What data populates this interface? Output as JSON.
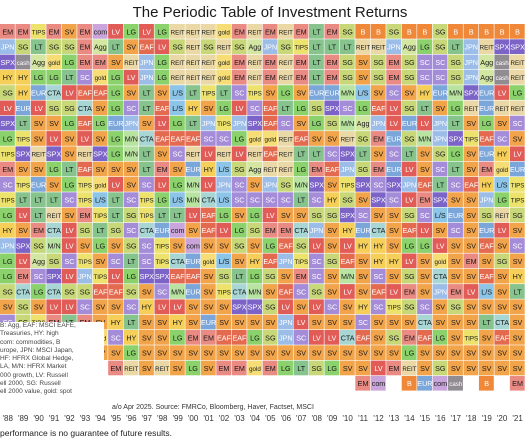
{
  "chart_data": {
    "type": "table",
    "title": "The Periodic Table of Investment Returns",
    "years": [
      "'88",
      "'89",
      "'90",
      "'91",
      "'92",
      "'93",
      "'94",
      "'95",
      "'96",
      "'97",
      "'98",
      "'99",
      "'00",
      "'01",
      "'02",
      "'03",
      "'04",
      "'05",
      "'06",
      "'07",
      "'08",
      "'09",
      "'10",
      "'11",
      "'12",
      "'13",
      "'14",
      "'15",
      "'16",
      "'17",
      "'18",
      "'19",
      "'20",
      "'21"
    ],
    "rows": [
      [
        "EM",
        "EM",
        "TIPS",
        "EM",
        "SV",
        "EM",
        "com",
        "LV",
        "LG",
        "LV",
        "LG",
        "REIT",
        "REIT",
        "REIT",
        "gold",
        "EM",
        "REIT",
        "EM",
        "REIT",
        "EM",
        "LT",
        "EM",
        "SG",
        "B",
        "B",
        "SG",
        "B",
        "B",
        "SG",
        "B",
        "B",
        "B",
        "B",
        "B"
      ],
      [
        "JPN",
        "SG",
        "LT",
        "SG",
        "SG",
        "EM",
        "Agg",
        "LT",
        "SV",
        "EAF",
        "LV",
        "SG",
        "REIT",
        "SG",
        "REIT",
        "SG",
        "Agg",
        "JPN",
        "SG",
        "TIPS",
        "LT",
        "LT",
        "LT",
        "REIT",
        "REIT",
        "JPN",
        "Agg",
        "LG",
        "SG",
        "LT",
        "JPN",
        "REIT",
        "SPX",
        "SPX"
      ],
      [
        "SPX",
        "cash",
        "Agg",
        "gold",
        "LG",
        "EM",
        "EM",
        "SV",
        "REIT",
        "JPN",
        "LG",
        "REIT",
        "REIT",
        "REIT",
        "gold",
        "EM",
        "REIT",
        "EM",
        "REIT",
        "EM",
        "LT",
        "EM",
        "SG",
        "SV",
        "SG",
        "EM",
        "SG",
        "SC",
        "SC",
        "SG",
        "JPN",
        "Agg",
        "cash",
        "REIT"
      ],
      [
        "HY",
        "HY",
        "LG",
        "LG",
        "LT",
        "SC",
        "gold",
        "LG",
        "LV",
        "JPN",
        "LG",
        "REIT",
        "REIT",
        "REIT",
        "gold",
        "EM",
        "REIT",
        "EM",
        "REIT",
        "EM",
        "LT",
        "EM",
        "SG",
        "SV",
        "SG",
        "EM",
        "SG",
        "SC",
        "SC",
        "SG",
        "JPN",
        "Agg",
        "cash",
        "REIT"
      ],
      [
        "SG",
        "HY",
        "EUR",
        "CTA",
        "LV",
        "EAF",
        "EAF",
        "LG",
        "SV",
        "LT",
        "SV",
        "L/S",
        "LT",
        "TIPS",
        "LT",
        "SC",
        "TIPS",
        "SV",
        "LG",
        "SV",
        "EUR",
        "EUR",
        "M/N",
        "L/S",
        "SV",
        "SC",
        "SV",
        "HY",
        "EUR",
        "M/N",
        "SPX",
        "EUR",
        "LV",
        "LG"
      ],
      [
        "LV",
        "EUR",
        "LV",
        "SG",
        "SG",
        "CTA",
        "SV",
        "LG",
        "SC",
        "LT",
        "EAF",
        "L/S",
        "HY",
        "SV",
        "LG",
        "LV",
        "SC",
        "EAF",
        "LT",
        "LG",
        "SG",
        "SPX",
        "SC",
        "LG",
        "EAF",
        "LV",
        "SG",
        "LT",
        "SV",
        "LG",
        "REIT",
        "EUR",
        "REIT",
        "REIT"
      ],
      [
        "SPX",
        "LT",
        "SV",
        "SV",
        "LG",
        "EAF",
        "LG",
        "EUR",
        "JPN",
        "SV",
        "LV",
        "LG",
        "LT",
        "JPN",
        "TIPS",
        "JPN",
        "SPX",
        "EAF",
        "SC",
        "SV",
        "LG",
        "SG",
        "M/N",
        "Agg",
        "JPN",
        "LV",
        "EUR",
        "LV",
        "JPN",
        "LT",
        "SV",
        "LG",
        "SV",
        "SC"
      ],
      [
        "LG",
        "TIPS",
        "SV",
        "LV",
        "SV",
        "LV",
        "SV",
        "LG",
        "M/N",
        "CTA",
        "EAF",
        "EAF",
        "EAF",
        "SC",
        "SC",
        "LG",
        "gold",
        "gold",
        "REIT",
        "EAF",
        "SV",
        "SV",
        "REIT",
        "SG",
        "EM",
        "EUR",
        "SG",
        "M/N",
        "JPN",
        "SPX",
        "TIPS",
        "EAF",
        "SC",
        "SV"
      ],
      [
        "TIPS",
        "SPX",
        "REIT",
        "SPX",
        "SV",
        "REIT",
        "SPX",
        "LG",
        "M/N",
        "LT",
        "SV",
        "SC",
        "REIT",
        "LV",
        "REIT",
        "LV",
        "REIT",
        "EAF",
        "REIT",
        "LT",
        "LT",
        "SC",
        "SPX",
        "LT",
        "SV",
        "SC",
        "LT",
        "SV",
        "SG",
        "LG",
        "SV",
        "EUR",
        "HY",
        "LV"
      ],
      [
        "EM",
        "SV",
        "SV",
        "LG",
        "LT",
        "EAF",
        "SV",
        "SV",
        "SV",
        "LT",
        "EM",
        "SV",
        "EUR",
        "HY",
        "L/S",
        "SG",
        "Agg",
        "REIT",
        "REIT",
        "LG",
        "EM",
        "EAF",
        "JPN",
        "SG",
        "EM",
        "EUR",
        "LV",
        "SV",
        "SC",
        "LT",
        "SV",
        "EM",
        "gold",
        "EUR"
      ],
      [
        "SC",
        "TIPS",
        "EUR",
        "SV",
        "LG",
        "TIPS",
        "gold",
        "LV",
        "SV",
        "SC",
        "LV",
        "LG",
        "M/N",
        "LV",
        "JPN",
        "SC",
        "SV",
        "JPN",
        "SG",
        "M/N",
        "SPX",
        "SV",
        "TIPS",
        "SPX",
        "SC",
        "SPX",
        "JPN",
        "EAF",
        "LT",
        "SC",
        "EAF",
        "HY",
        "L/S",
        "TIPS"
      ],
      [
        "TIPS",
        "LT",
        "LT",
        "LT",
        "SC",
        "TIPS",
        "L/S",
        "LT",
        "SC",
        "TIPS",
        "LG",
        "L/S",
        "M/N",
        "CTA",
        "L/S",
        "SC",
        "SC",
        "SC",
        "SC",
        "LT",
        "SC",
        "HY",
        "SG",
        "SV",
        "SPX",
        "SC",
        "LV",
        "EM",
        "SPX",
        "SV",
        "SV",
        "JPN",
        "LG",
        "TIPS"
      ],
      [
        "LG",
        "LV",
        "LT",
        "REIT",
        "SV",
        "EM",
        "TIPS",
        "LT",
        "SG",
        "TIPS",
        "LT",
        "LT",
        "LV",
        "EAF",
        "LG",
        "SV",
        "LG",
        "LV",
        "SV",
        "SV",
        "SG",
        "SG",
        "SPX",
        "SC",
        "SV",
        "SV",
        "SG",
        "SC",
        "L/S",
        "EUR",
        "SV",
        "SG",
        "REIT",
        "SG"
      ],
      [
        "HY",
        "SV",
        "EM",
        "CTA",
        "LV",
        "SG",
        "LT",
        "SG",
        "SC",
        "CTA",
        "EUR",
        "com",
        "SV",
        "EAF",
        "LV",
        "LG",
        "SG",
        "EM",
        "EM",
        "CTA",
        "JPN",
        "SV",
        "HY",
        "EUR",
        "CTA",
        "SV",
        "EAF",
        "LV",
        "SV",
        "SC",
        "SV",
        "EUR",
        "LV",
        "SV"
      ],
      [
        "JPN",
        "SPX",
        "SG",
        "M/N",
        "LV",
        "SV",
        "LG",
        "SV",
        "SG",
        "SC",
        "TIPS",
        "SV",
        "com",
        "SV",
        "SV",
        "SG",
        "SV",
        "LG",
        "EAF",
        "SG",
        "LV",
        "SV",
        "LV",
        "HY",
        "HY",
        "SV",
        "LG",
        "LG",
        "LV",
        "SV",
        "SV",
        "EAF",
        "SV",
        "SC"
      ],
      [
        "LG",
        "LV",
        "Agg",
        "SG",
        "SC",
        "TIPS",
        "SV",
        "SC",
        "LT",
        "SC",
        "TIPS",
        "CTA",
        "EUR",
        "gold",
        "L/S",
        "SV",
        "HY",
        "EAF",
        "JPN",
        "TIPS",
        "SC",
        "SG",
        "EAF",
        "SV",
        "HY",
        "HY",
        "LV",
        "SV",
        "gold",
        "SV",
        "EM",
        "SV",
        "SG",
        "SV"
      ],
      [
        "LG",
        "EM",
        "SC",
        "SPX",
        "LV",
        "JPN",
        "TIPS",
        "LV",
        "LG",
        "SPX",
        "SPX",
        "EAF",
        "EAF",
        "SV",
        "SG",
        "LT",
        "LG",
        "SG",
        "SV",
        "EM",
        "SC",
        "SV",
        "M/N",
        "SV",
        "SC",
        "SV",
        "SG",
        "SV",
        "CTA",
        "SV",
        "SV",
        "EAF",
        "SV",
        "HY"
      ],
      [
        "SG",
        "CTA",
        "LG",
        "CTA",
        "SG",
        "SG",
        "EAF",
        "EAF",
        "SG",
        "SV",
        "SC",
        "M/N",
        "EUR",
        "SV",
        "TIPS",
        "CTA",
        "M/N",
        "SV",
        "EAF",
        "SC",
        "SG",
        "SV",
        "LV",
        "SV",
        "EAF",
        "LV",
        "EM",
        "SV",
        "JPN",
        "EM",
        "LV",
        "L/S",
        "SV",
        "LT"
      ],
      [
        "SV",
        "SG",
        "SV",
        "LV",
        "LV",
        "SC",
        "SV",
        "SV",
        "SC",
        "HY",
        "LV",
        "LV",
        "SV",
        "SV",
        "SV",
        "SPX",
        "SPX",
        "SG",
        "LV",
        "SV",
        "LV",
        "SC",
        "SV",
        "HY",
        "SC",
        "TIPS",
        "SG",
        "SC",
        "SV",
        "SG",
        "SV",
        "SV",
        "SV",
        "SV"
      ],
      [
        "SC",
        "SG",
        "TIPS",
        "EM",
        "LT",
        "EM",
        "SV",
        "HY",
        "LT",
        "SV",
        "SV",
        "HY",
        "SV",
        "EUR",
        "SV",
        "SV",
        "SV",
        "SV",
        "JPN",
        "LV",
        "SV",
        "SV",
        "SV",
        "SC",
        "SV",
        "SV",
        "SV",
        "CTA",
        "SV",
        "SV",
        "SV",
        "LT",
        "CTA",
        "SV"
      ],
      [
        "SG",
        "EM",
        "EAF",
        "SV",
        "LT",
        "EAF",
        "gold",
        "SC",
        "HY",
        "SV",
        "SV",
        "LG",
        "EM",
        "EM",
        "EAF",
        "EAF",
        "LG",
        "SG",
        "JPN",
        "SC",
        "LV",
        "LV",
        "CTA",
        "EAF",
        "SV",
        "SG",
        "EM",
        "EAF",
        "LG",
        "SV",
        "TIPS",
        "SV",
        "EAF",
        "SV"
      ],
      [
        "SV",
        "JPN",
        "SV",
        "SC",
        "SV",
        "LV",
        "SV",
        "SV",
        "LG",
        "SV",
        "SV",
        "SV",
        "SV",
        "SV",
        "SV",
        "SV",
        "SV",
        "SV",
        "SV",
        "SV",
        "SV",
        "SV",
        "SV",
        "SV",
        "SV",
        "SV",
        "LG",
        "SV",
        "SV",
        "SV",
        "SV",
        "SV",
        "SV",
        "SV"
      ],
      [
        "",
        "",
        "",
        "",
        "",
        "",
        "",
        "EM",
        "REIT",
        "SV",
        "REIT",
        "SV",
        "LG",
        "SV",
        "EM",
        "EM",
        "gold",
        "EM",
        "LG",
        "LT",
        "SG",
        "LG",
        "SV",
        "SV",
        "LV",
        "EM",
        "REIT",
        "SV",
        "SG",
        "SV",
        "SV",
        "SV",
        "SV",
        "SV"
      ],
      [
        "",
        "",
        "",
        "",
        "",
        "",
        "",
        "",
        "",
        "",
        "",
        "",
        "",
        "",
        "",
        "",
        "",
        "",
        "",
        "",
        "",
        "",
        "",
        "EM",
        "com",
        "",
        "B",
        "EUR",
        "com",
        "cash",
        "",
        "B",
        "",
        "EM"
      ]
    ],
    "colors": {
      "EM": "#e98a83",
      "LG": "#8bd26c",
      "LV": "#e25c57",
      "SG": "#c8d879",
      "SV": "#f2a44a",
      "SC": "#a48cd9",
      "LT": "#86c38d",
      "TIPS": "#ece26c",
      "REIT": "#ead9a6",
      "gold": "#f6dd76",
      "Agg": "#d3e6a2",
      "HY": "#f5cf58",
      "JPN": "#9bbde8",
      "EAF": "#e36a4f",
      "EUR": "#7ba6da",
      "SPX": "#7c63c7",
      "CTA": "#a7d6d5",
      "L/S": "#8cc5e8",
      "M/N": "#b8e3a1",
      "com": "#c9a5db",
      "cash": "#918c92",
      "B": "#f0883a"
    },
    "legend_notes": [
      "B: Agg, EAF: MSCI EAFE,",
      "Treasuries, HY: high",
      "com: commodities, B",
      "urope, JPN: MSCI Japan,",
      "HF: HFRX Global Hedge,",
      "LA, M/N: HFRX Market",
      "000 growth, LV: Russell",
      "ell 2000, SG: Russell",
      "ell 2000 value, gold: spot"
    ],
    "source": "a/o Apr 2025. Source: FMRCo, Bloomberg, Haver, Factset, MSCI",
    "footer": "performance is no guarantee of future results."
  }
}
